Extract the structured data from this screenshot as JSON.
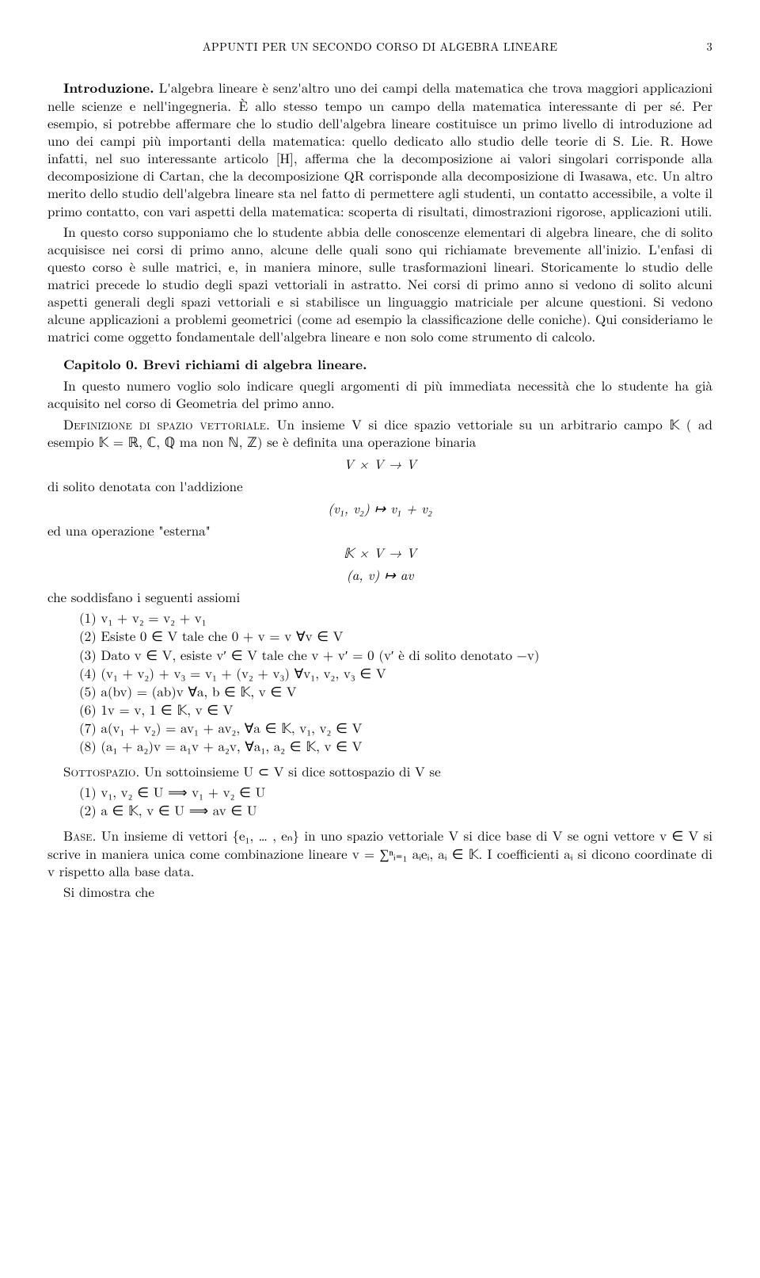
{
  "header": {
    "title": "APPUNTI PER UN SECONDO CORSO DI ALGEBRA LINEARE",
    "page": "3"
  },
  "intro": {
    "heading": "Introduzione.",
    "p1a": "L'algebra lineare è senz'altro uno dei campi della matematica che trova maggiori applicazioni nelle scienze e nell'ingegneria. È allo stesso tempo un campo della matematica interessante di per sé. Per esempio, si potrebbe affermare che lo studio dell'algebra lineare costituisce un primo livello di introduzione ad uno dei campi più importanti della matematica: quello dedicato allo studio delle teorie di S. Lie. R. Howe infatti, nel suo interessante articolo [H], afferma che la decomposizione ai valori singolari corrisponde alla decomposizione di Cartan, che la decomposizione QR corrisponde alla decomposizione di Iwasawa, etc. Un altro merito dello studio dell'algebra lineare sta nel fatto di permettere agli studenti, un contatto accessibile, a volte il primo contatto, con vari aspetti della matematica: scoperta di risultati, dimostrazioni rigorose, applicazioni utili.",
    "p2": "In questo corso supponiamo che lo studente abbia delle conoscenze elementari di algebra lineare, che di solito acquisisce nei corsi di primo anno, alcune delle quali sono qui richiamate brevemente all'inizio. L'enfasi di questo corso è sulle matrici, e, in maniera minore, sulle trasformazioni lineari. Storicamente lo studio delle matrici precede lo studio degli spazi vettoriali in astratto. Nei corsi di primo anno si vedono di solito alcuni aspetti generali degli spazi vettoriali e si stabilisce un linguaggio matriciale per alcune questioni. Si vedono alcune applicazioni a problemi geometrici (come ad esempio la classificazione delle coniche). Qui consideriamo le matrici come oggetto fondamentale dell'algebra lineare e non solo come strumento di calcolo."
  },
  "cap0": {
    "title": "Capitolo 0. Brevi richiami di algebra lineare.",
    "p1": "In questo numero voglio solo indicare quegli argomenti di più immediata necessità che lo studente ha già acquisito nel corso di Geometria del primo anno."
  },
  "def_vs": {
    "heading": "Definizione di spazio vettoriale.",
    "text1": "Un insieme V si dice spazio vettoriale su un arbitrario campo 𝕂 ( ad esempio 𝕂 = ℝ, ℂ, ℚ ma non ℕ, ℤ) se è definita una operazione binaria",
    "eq1": "V × V → V",
    "text2": "di solito denotata con l'addizione",
    "eq2": "(v₁, v₂) ↦ v₁ + v₂",
    "text3": "ed una operazione \"esterna\"",
    "eq3a": "𝕂 × V → V",
    "eq3b": "(a, v) ↦ av",
    "text4": "che soddisfano i seguenti assiomi",
    "axioms": [
      "(1)  v₁ + v₂ = v₂ + v₁",
      "(2)  Esiste 0 ∈ V tale che 0 + v = v  ∀v ∈ V",
      "(3)  Dato v ∈ V, esiste v′ ∈ V tale che v + v′ = 0 (v′ è di solito denotato −v)",
      "(4)  (v₁ + v₂) + v₃ = v₁ + (v₂ + v₃)  ∀v₁, v₂, v₃ ∈ V",
      "(5)  a(bv) = (ab)v  ∀a, b ∈ 𝕂, v ∈ V",
      "(6)  1v = v, 1 ∈ 𝕂, v ∈ V",
      "(7)  a(v₁ + v₂) = av₁ + av₂, ∀a ∈ 𝕂, v₁, v₂ ∈ V",
      "(8)  (a₁ + a₂)v = a₁v + a₂v, ∀a₁, a₂ ∈ 𝕂, v ∈ V"
    ]
  },
  "subspace": {
    "heading": "Sottospazio.",
    "text": "Un sottoinsieme U ⊂ V si dice sottospazio di V se",
    "items": [
      "(1)  v₁, v₂ ∈ U  ⟹  v₁ + v₂ ∈ U",
      "(2)  a ∈ 𝕂, v ∈ U  ⟹  av ∈ U"
    ]
  },
  "base": {
    "heading": "Base.",
    "text": "Un insieme di vettori {e₁, … , eₙ} in uno spazio vettoriale V si dice base di V se ogni vettore v ∈ V si scrive in maniera unica come combinazione lineare v = ∑ⁿᵢ₌₁ aᵢeᵢ, aᵢ ∈ 𝕂. I coefficienti aᵢ si dicono coordinate di v rispetto alla base data."
  },
  "closing": "Si dimostra che"
}
